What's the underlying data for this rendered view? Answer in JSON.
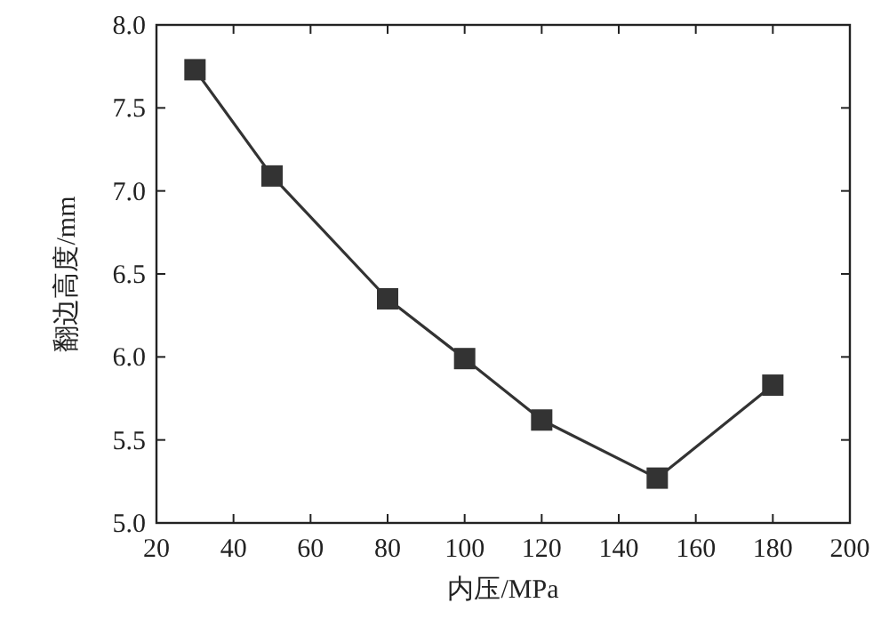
{
  "chart_data": {
    "type": "line",
    "xlabel": "内压/MPa",
    "ylabel": "翻边高度/mm",
    "x": [
      30,
      50,
      80,
      100,
      120,
      150,
      180
    ],
    "series": [
      {
        "color": "#333333",
        "values": [
          7.73,
          7.09,
          6.35,
          5.99,
          5.62,
          5.27,
          5.83
        ]
      }
    ],
    "xlim": [
      20,
      200
    ],
    "xticks": [
      20,
      40,
      60,
      80,
      100,
      120,
      140,
      160,
      180,
      200
    ],
    "ylim": [
      5,
      8
    ],
    "yticks": [
      {
        "value": 5,
        "label": "5.0"
      },
      {
        "value": 5.5,
        "label": "5.5"
      },
      {
        "value": 6,
        "label": "6.0"
      },
      {
        "value": 6.5,
        "label": "6.5"
      },
      {
        "value": 7,
        "label": "7.0"
      },
      {
        "value": 7.5,
        "label": "7.5"
      },
      {
        "value": 8,
        "label": "8.0"
      }
    ],
    "marker": "square",
    "line_style": "solid"
  }
}
